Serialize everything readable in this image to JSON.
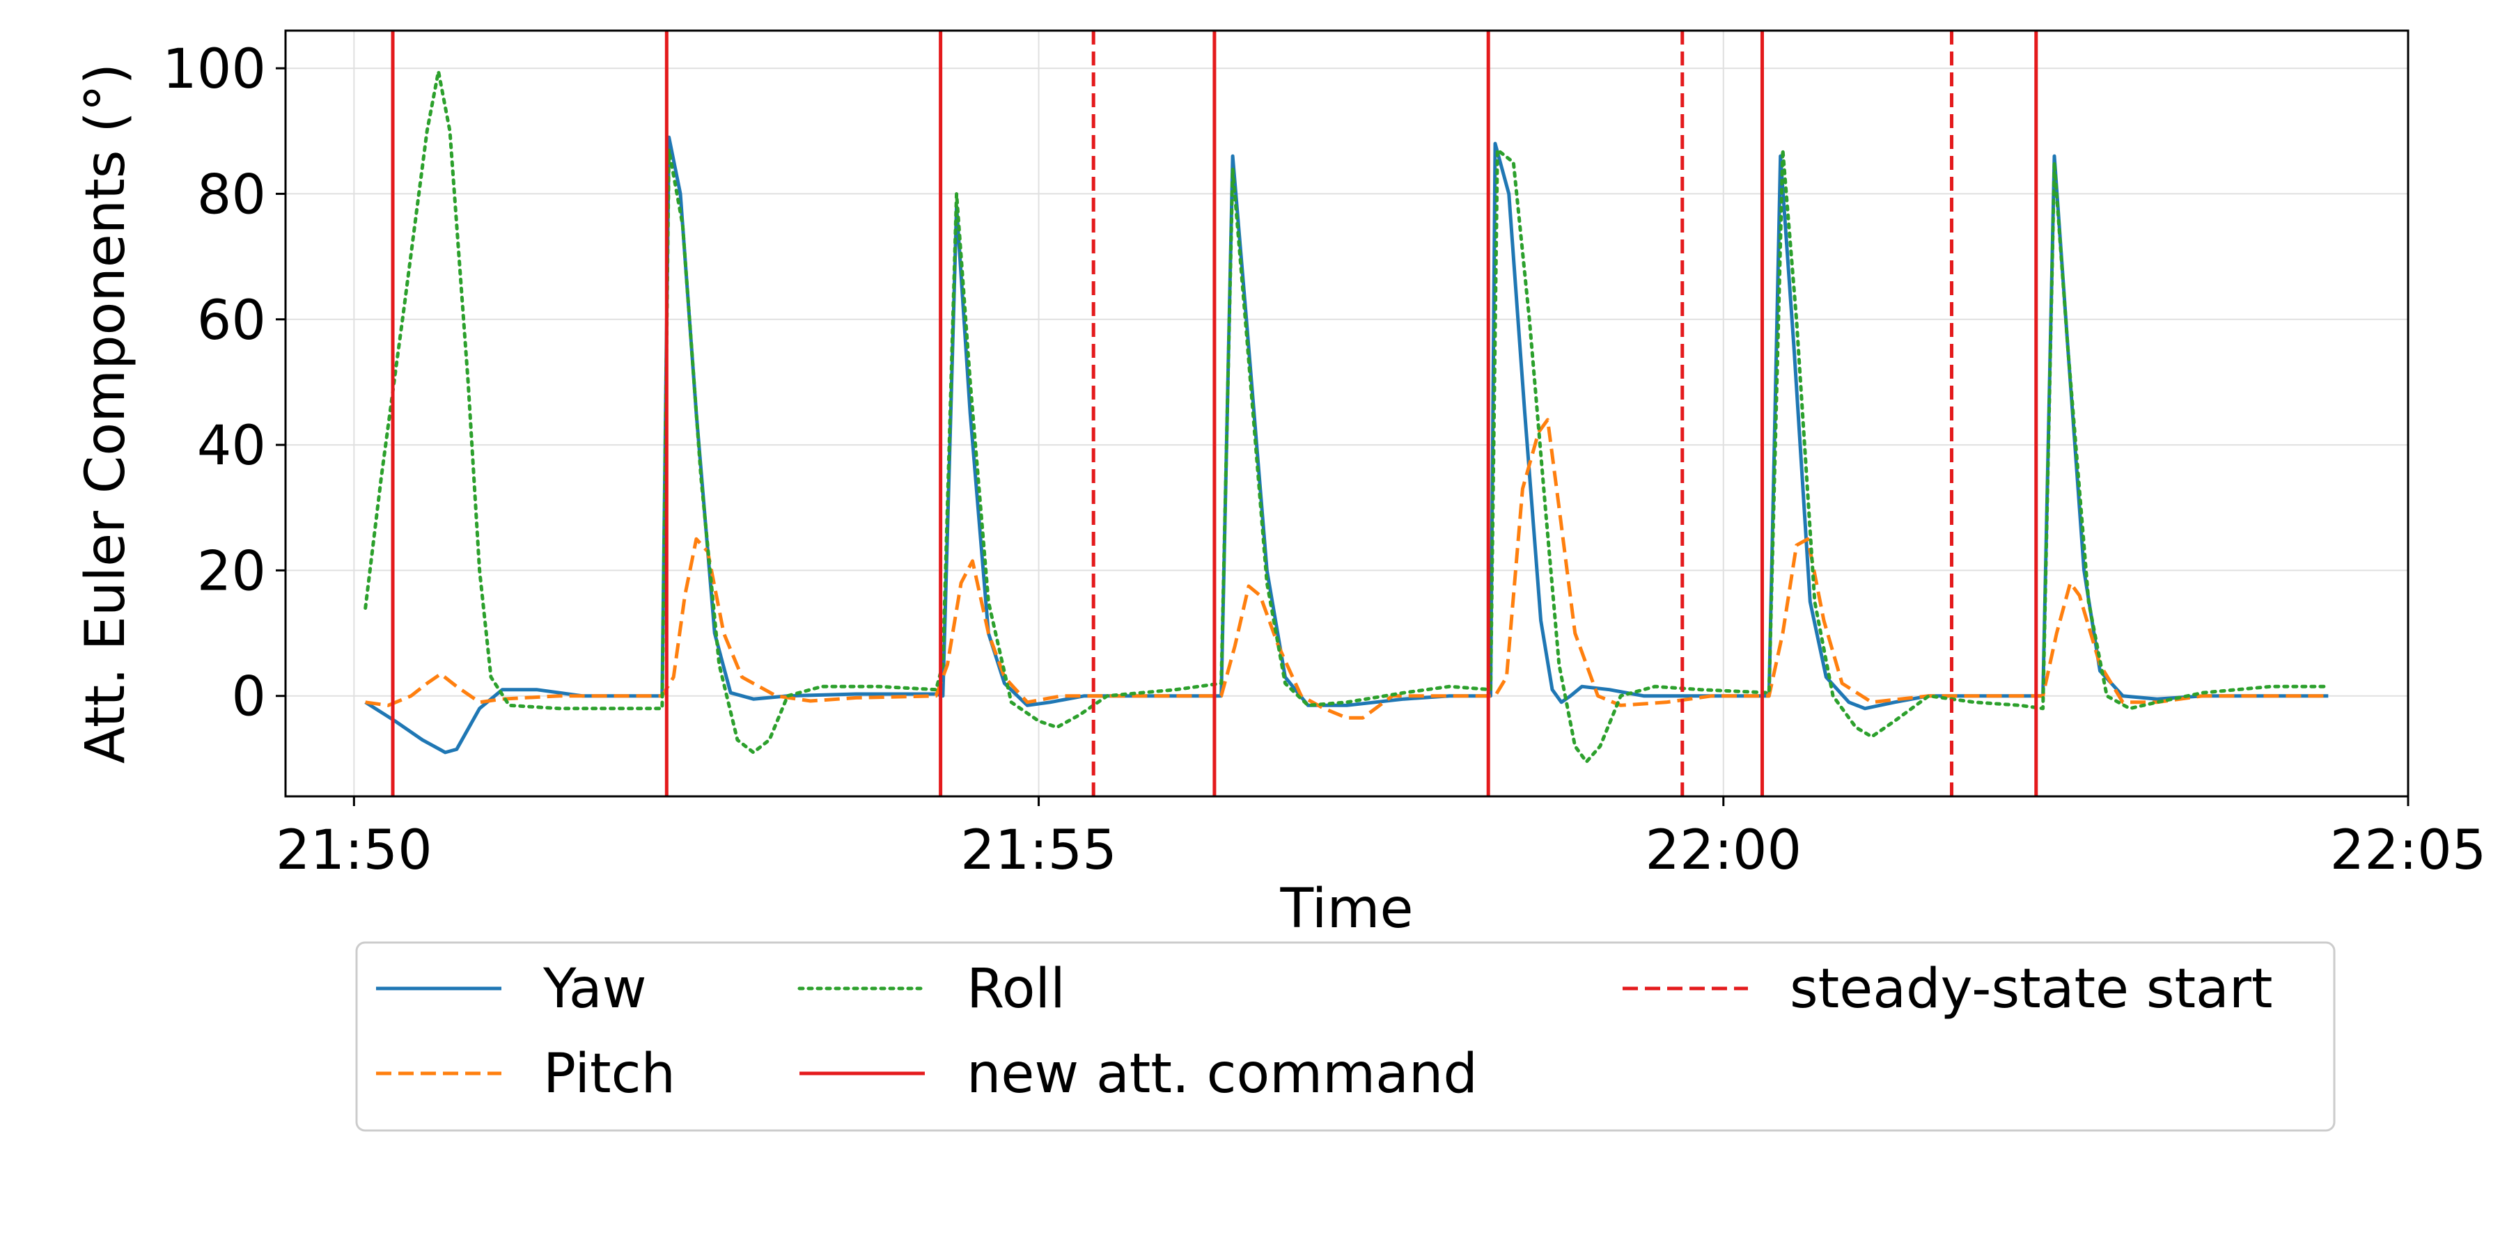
{
  "chart_data": {
    "type": "line",
    "xlabel": "Time",
    "ylabel": "Att. Euler Components (°)",
    "x_axis": {
      "unit": "minutes",
      "range": [
        "21:49:30",
        "22:05:00"
      ],
      "ticks": [
        "21:50",
        "21:55",
        "22:00",
        "22:05"
      ]
    },
    "y_axis": {
      "range": [
        -16,
        106
      ],
      "ticks": [
        "0",
        "20",
        "40",
        "60",
        "80",
        "100"
      ]
    },
    "grid": true,
    "colors": {
      "yaw": "#1f77b4",
      "pitch": "#ff7f0e",
      "roll": "#2ca02c",
      "markers": "#e41a1c"
    },
    "series": [
      {
        "name": "Yaw",
        "style": "solid",
        "points": [
          [
            "21:50:05",
            -1
          ],
          [
            "21:50:18",
            -4
          ],
          [
            "21:50:30",
            -7
          ],
          [
            "21:50:40",
            -9
          ],
          [
            "21:50:45",
            -8.5
          ],
          [
            "21:50:55",
            -2
          ],
          [
            "21:51:05",
            1
          ],
          [
            "21:51:20",
            1
          ],
          [
            "21:51:40",
            0
          ],
          [
            "21:52:00",
            0
          ],
          [
            "21:52:15",
            0
          ],
          [
            "21:52:18",
            89
          ],
          [
            "21:52:23",
            80
          ],
          [
            "21:52:30",
            45
          ],
          [
            "21:52:38",
            10
          ],
          [
            "21:52:45",
            0.5
          ],
          [
            "21:52:55",
            -0.5
          ],
          [
            "21:53:10",
            0
          ],
          [
            "21:53:40",
            0.3
          ],
          [
            "21:54:15",
            0.3
          ],
          [
            "21:54:18",
            0
          ],
          [
            "21:54:24",
            78
          ],
          [
            "21:54:30",
            45
          ],
          [
            "21:54:38",
            10
          ],
          [
            "21:54:45",
            2
          ],
          [
            "21:54:55",
            -1.5
          ],
          [
            "21:55:05",
            -1
          ],
          [
            "21:55:20",
            0
          ],
          [
            "21:56:00",
            0
          ],
          [
            "21:56:20",
            0
          ],
          [
            "21:56:25",
            86
          ],
          [
            "21:56:31",
            60
          ],
          [
            "21:56:40",
            20
          ],
          [
            "21:56:48",
            3
          ],
          [
            "21:56:58",
            -1.5
          ],
          [
            "21:57:15",
            -1.5
          ],
          [
            "21:57:40",
            -0.5
          ],
          [
            "21:58:00",
            0
          ],
          [
            "21:58:18",
            0
          ],
          [
            "21:58:20",
            88
          ],
          [
            "21:58:26",
            80
          ],
          [
            "21:58:33",
            45
          ],
          [
            "21:58:40",
            12
          ],
          [
            "21:58:45",
            1
          ],
          [
            "21:58:49",
            -1
          ],
          [
            "21:58:53",
            0
          ],
          [
            "21:58:58",
            1.5
          ],
          [
            "21:59:10",
            1
          ],
          [
            "21:59:25",
            0
          ],
          [
            "21:59:50",
            0
          ],
          [
            "22:00:15",
            0
          ],
          [
            "22:00:20",
            0
          ],
          [
            "22:00:25",
            86
          ],
          [
            "22:00:31",
            55
          ],
          [
            "22:00:38",
            15
          ],
          [
            "22:00:45",
            3
          ],
          [
            "22:00:55",
            -1
          ],
          [
            "22:01:02",
            -2
          ],
          [
            "22:01:15",
            -1
          ],
          [
            "22:01:30",
            0
          ],
          [
            "22:02:00",
            0
          ],
          [
            "22:02:20",
            0
          ],
          [
            "22:02:25",
            86
          ],
          [
            "22:02:31",
            55
          ],
          [
            "22:02:38",
            20
          ],
          [
            "22:02:45",
            4
          ],
          [
            "22:02:55",
            0
          ],
          [
            "22:03:10",
            -0.5
          ],
          [
            "22:03:30",
            0
          ],
          [
            "22:04:00",
            0
          ],
          [
            "22:04:25",
            0
          ]
        ]
      },
      {
        "name": "Pitch",
        "style": "dashed",
        "points": [
          [
            "21:50:05",
            -1
          ],
          [
            "21:50:15",
            -1.5
          ],
          [
            "21:50:25",
            0
          ],
          [
            "21:50:32",
            2
          ],
          [
            "21:50:38",
            3.5
          ],
          [
            "21:50:45",
            1.5
          ],
          [
            "21:50:55",
            -1
          ],
          [
            "21:51:05",
            -0.5
          ],
          [
            "21:51:30",
            0
          ],
          [
            "21:52:15",
            0
          ],
          [
            "21:52:20",
            3
          ],
          [
            "21:52:25",
            16
          ],
          [
            "21:52:30",
            25
          ],
          [
            "21:52:35",
            23
          ],
          [
            "21:52:42",
            10
          ],
          [
            "21:52:50",
            3
          ],
          [
            "21:53:05",
            0
          ],
          [
            "21:53:20",
            -0.8
          ],
          [
            "21:53:40",
            -0.3
          ],
          [
            "21:54:15",
            0
          ],
          [
            "21:54:20",
            5
          ],
          [
            "21:54:26",
            18
          ],
          [
            "21:54:31",
            21.5
          ],
          [
            "21:54:38",
            10
          ],
          [
            "21:54:45",
            3
          ],
          [
            "21:54:55",
            -1
          ],
          [
            "21:55:10",
            0
          ],
          [
            "21:55:40",
            0
          ],
          [
            "21:56:20",
            0
          ],
          [
            "21:56:26",
            8
          ],
          [
            "21:56:32",
            17.5
          ],
          [
            "21:56:37",
            16
          ],
          [
            "21:56:45",
            8
          ],
          [
            "21:56:55",
            0
          ],
          [
            "21:57:05",
            -2
          ],
          [
            "21:57:15",
            -3.5
          ],
          [
            "21:57:22",
            -3.5
          ],
          [
            "21:57:35",
            0
          ],
          [
            "21:58:00",
            0
          ],
          [
            "21:58:20",
            0
          ],
          [
            "21:58:25",
            3
          ],
          [
            "21:58:32",
            33
          ],
          [
            "21:58:39",
            42
          ],
          [
            "21:58:43",
            44
          ],
          [
            "21:58:48",
            30
          ],
          [
            "21:58:55",
            10
          ],
          [
            "21:59:05",
            0
          ],
          [
            "21:59:15",
            -1.5
          ],
          [
            "21:59:35",
            -1
          ],
          [
            "21:59:55",
            0
          ],
          [
            "22:00:20",
            0
          ],
          [
            "22:00:26",
            10
          ],
          [
            "22:00:32",
            24
          ],
          [
            "22:00:37",
            25
          ],
          [
            "22:00:44",
            12
          ],
          [
            "22:00:52",
            2
          ],
          [
            "22:01:05",
            -1
          ],
          [
            "22:01:30",
            0
          ],
          [
            "22:02:00",
            0
          ],
          [
            "22:02:20",
            0
          ],
          [
            "22:02:26",
            10
          ],
          [
            "22:02:32",
            18
          ],
          [
            "22:02:36",
            16
          ],
          [
            "22:02:45",
            5
          ],
          [
            "22:02:55",
            -1
          ],
          [
            "22:03:10",
            -1
          ],
          [
            "22:03:30",
            0
          ],
          [
            "22:04:25",
            0
          ]
        ]
      },
      {
        "name": "Roll",
        "style": "dotted",
        "points": [
          [
            "21:50:05",
            14
          ],
          [
            "21:50:12",
            35
          ],
          [
            "21:50:22",
            62
          ],
          [
            "21:50:32",
            90
          ],
          [
            "21:50:37",
            99.5
          ],
          [
            "21:50:42",
            90
          ],
          [
            "21:50:50",
            50
          ],
          [
            "21:50:55",
            20
          ],
          [
            "21:51:00",
            3
          ],
          [
            "21:51:08",
            -1.5
          ],
          [
            "21:51:30",
            -2
          ],
          [
            "21:52:00",
            -2
          ],
          [
            "21:52:15",
            -2
          ],
          [
            "21:52:18",
            87
          ],
          [
            "21:52:24",
            75
          ],
          [
            "21:52:32",
            35
          ],
          [
            "21:52:40",
            5
          ],
          [
            "21:52:48",
            -7
          ],
          [
            "21:52:55",
            -9
          ],
          [
            "21:53:02",
            -7
          ],
          [
            "21:53:10",
            0
          ],
          [
            "21:53:25",
            1.5
          ],
          [
            "21:53:50",
            1.5
          ],
          [
            "21:54:15",
            1
          ],
          [
            "21:54:18",
            5
          ],
          [
            "21:54:24",
            80
          ],
          [
            "21:54:30",
            50
          ],
          [
            "21:54:38",
            15
          ],
          [
            "21:54:48",
            -1
          ],
          [
            "21:55:00",
            -4
          ],
          [
            "21:55:08",
            -5
          ],
          [
            "21:55:18",
            -3
          ],
          [
            "21:55:30",
            0
          ],
          [
            "21:56:00",
            1
          ],
          [
            "21:56:20",
            2
          ],
          [
            "21:56:25",
            84
          ],
          [
            "21:56:31",
            58
          ],
          [
            "21:56:40",
            18
          ],
          [
            "21:56:48",
            2
          ],
          [
            "21:56:58",
            -1.5
          ],
          [
            "21:57:15",
            -1
          ],
          [
            "21:57:40",
            0.5
          ],
          [
            "21:58:00",
            1.5
          ],
          [
            "21:58:18",
            1
          ],
          [
            "21:58:21",
            87
          ],
          [
            "21:58:28",
            85
          ],
          [
            "21:58:35",
            60
          ],
          [
            "21:58:42",
            30
          ],
          [
            "21:58:48",
            5
          ],
          [
            "21:58:55",
            -8
          ],
          [
            "21:59:00",
            -10.5
          ],
          [
            "21:59:06",
            -8
          ],
          [
            "21:59:15",
            0
          ],
          [
            "21:59:30",
            1.5
          ],
          [
            "21:59:50",
            1
          ],
          [
            "22:00:20",
            0.5
          ],
          [
            "22:00:26",
            87
          ],
          [
            "22:00:32",
            60
          ],
          [
            "22:00:40",
            15
          ],
          [
            "22:00:48",
            0
          ],
          [
            "22:00:58",
            -5
          ],
          [
            "22:01:05",
            -6.5
          ],
          [
            "22:01:15",
            -4
          ],
          [
            "22:01:30",
            0
          ],
          [
            "22:01:50",
            -1
          ],
          [
            "22:02:10",
            -1.5
          ],
          [
            "22:02:20",
            -2
          ],
          [
            "22:02:25",
            85
          ],
          [
            "22:02:31",
            55
          ],
          [
            "22:02:40",
            15
          ],
          [
            "22:02:48",
            0
          ],
          [
            "22:02:58",
            -2
          ],
          [
            "22:03:10",
            -1
          ],
          [
            "22:03:30",
            0.5
          ],
          [
            "22:04:00",
            1.5
          ],
          [
            "22:04:25",
            1.5
          ]
        ]
      }
    ],
    "vertical_markers": [
      {
        "name": "new att. command",
        "style": "solid",
        "times": [
          "21:50:17",
          "21:52:17",
          "21:54:17",
          "21:56:17",
          "21:58:17",
          "22:00:17",
          "22:02:17"
        ]
      },
      {
        "name": "steady-state start",
        "style": "dashed",
        "times": [
          "21:55:24",
          "21:59:42",
          "22:01:40"
        ]
      }
    ],
    "legend": {
      "placement": "below plot",
      "entries": [
        {
          "label": "Yaw",
          "key": "yaw",
          "style": "solid"
        },
        {
          "label": "Pitch",
          "key": "pitch",
          "style": "dashed"
        },
        {
          "label": "Roll",
          "key": "roll",
          "style": "dotted"
        },
        {
          "label": "new att. command",
          "key": "markers",
          "style": "solid"
        },
        {
          "label": "steady-state start",
          "key": "markers",
          "style": "dashed"
        }
      ]
    }
  }
}
